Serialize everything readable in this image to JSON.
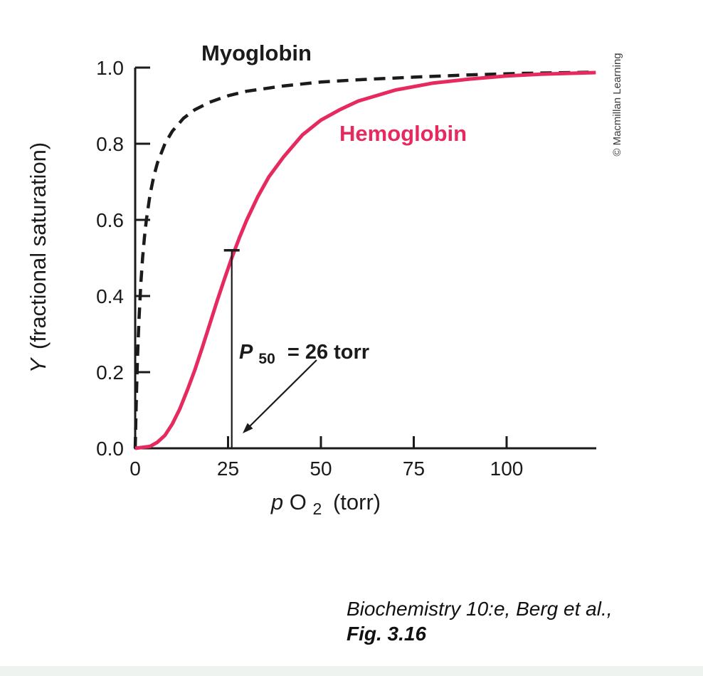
{
  "figure": {
    "credit": "© Macmillan Learning",
    "caption_line1": "Biochemistry 10:e, Berg et al.,",
    "caption_line2": "Fig. 3.16"
  },
  "chart_data": {
    "type": "line",
    "title": "",
    "xlabel": "pO2 (torr)",
    "ylabel": "Y (fractional saturation)",
    "xlim": [
      0,
      124
    ],
    "ylim": [
      0,
      1.0
    ],
    "grid": false,
    "legend_position": "inline-labels",
    "xticks": [
      0,
      25,
      50,
      75,
      100
    ],
    "xtick_labels": [
      "0",
      "25",
      "50",
      "75",
      "100"
    ],
    "yticks": [
      0,
      0.2,
      0.4,
      0.6,
      0.8,
      1.0
    ],
    "ytick_labels": [
      "0.0",
      "0.2",
      "0.4",
      "0.6",
      "0.8",
      "1.0"
    ],
    "axis_labels": {
      "y_var": "Y",
      "y_rest": "(fractional saturation)",
      "x_var": "p",
      "x_main": "O",
      "x_sub": "2",
      "x_rest": "(torr)"
    },
    "annotation": {
      "label": "P50 = 26 torr",
      "text_p": "P",
      "text_sub": "50",
      "text_rest": "= 26 torr",
      "p50_torr": 26,
      "marker_y": 0.52
    },
    "series": [
      {
        "name": "Myoglobin",
        "style": "dashed",
        "color": "#1b1b1b",
        "points": [
          [
            0,
            0
          ],
          [
            0.3,
            0.13
          ],
          [
            0.6,
            0.23
          ],
          [
            1,
            0.333
          ],
          [
            1.5,
            0.429
          ],
          [
            2,
            0.5
          ],
          [
            2.5,
            0.556
          ],
          [
            3,
            0.6
          ],
          [
            4,
            0.667
          ],
          [
            5,
            0.714
          ],
          [
            6,
            0.75
          ],
          [
            8,
            0.8
          ],
          [
            10,
            0.833
          ],
          [
            13,
            0.867
          ],
          [
            16,
            0.889
          ],
          [
            20,
            0.909
          ],
          [
            25,
            0.926
          ],
          [
            30,
            0.938
          ],
          [
            40,
            0.952
          ],
          [
            50,
            0.962
          ],
          [
            60,
            0.968
          ],
          [
            75,
            0.975
          ],
          [
            90,
            0.981
          ],
          [
            105,
            0.985
          ],
          [
            124,
            0.988
          ]
        ]
      },
      {
        "name": "Hemoglobin",
        "style": "solid",
        "color": "#e62a5f",
        "points": [
          [
            0,
            0
          ],
          [
            4,
            0.005
          ],
          [
            6,
            0.016
          ],
          [
            8,
            0.034
          ],
          [
            10,
            0.064
          ],
          [
            12,
            0.103
          ],
          [
            14,
            0.152
          ],
          [
            16,
            0.204
          ],
          [
            18,
            0.263
          ],
          [
            20,
            0.324
          ],
          [
            22,
            0.385
          ],
          [
            24,
            0.444
          ],
          [
            26,
            0.5
          ],
          [
            28,
            0.552
          ],
          [
            30,
            0.599
          ],
          [
            33,
            0.661
          ],
          [
            36,
            0.713
          ],
          [
            40,
            0.766
          ],
          [
            45,
            0.823
          ],
          [
            50,
            0.862
          ],
          [
            55,
            0.889
          ],
          [
            60,
            0.912
          ],
          [
            70,
            0.941
          ],
          [
            80,
            0.959
          ],
          [
            90,
            0.97
          ],
          [
            100,
            0.978
          ],
          [
            110,
            0.983
          ],
          [
            124,
            0.987
          ]
        ]
      }
    ]
  }
}
